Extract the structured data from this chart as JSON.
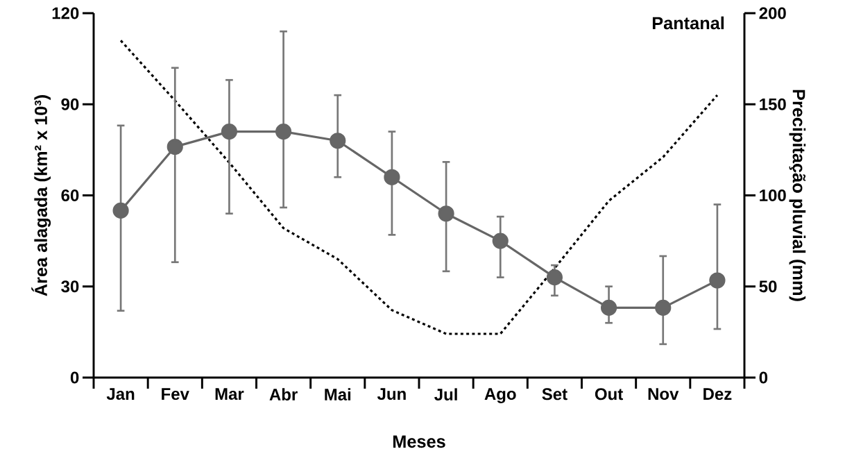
{
  "chart_data": {
    "type": "line",
    "title": "Pantanal",
    "xlabel": "Meses",
    "ylabel": "Área alagada (km² x 10³)",
    "y2label": "Precipitação pluvial (mm)",
    "categories": [
      "Jan",
      "Fev",
      "Mar",
      "Abr",
      "Mai",
      "Jun",
      "Jul",
      "Ago",
      "Set",
      "Out",
      "Nov",
      "Dez"
    ],
    "series": [
      {
        "color": "#666666",
        "marker": "circle",
        "line_style": "solid",
        "values": [
          55,
          76,
          81,
          81,
          78,
          66,
          54,
          45,
          33,
          23,
          23,
          32
        ],
        "errors": [
          [
            22,
            83
          ],
          [
            38,
            102
          ],
          [
            54,
            98
          ],
          [
            56,
            114
          ],
          [
            66,
            93
          ],
          [
            47,
            81
          ],
          [
            35,
            71
          ],
          [
            33,
            53
          ],
          [
            27,
            37
          ],
          [
            18,
            30
          ],
          [
            11,
            40
          ],
          [
            16,
            57
          ]
        ]
      },
      {
        "type": "line",
        "axis": "y2",
        "color": "#000000",
        "marker": "none",
        "line_style": "dotted",
        "values": [
          185,
          152,
          118,
          82,
          65,
          37,
          24,
          24,
          60,
          97,
          121,
          155
        ]
      }
    ],
    "ylim": [
      0,
      120
    ],
    "yticks": [
      0,
      30,
      60,
      90,
      120
    ],
    "y2lim": [
      0,
      200
    ],
    "y2ticks": [
      0,
      50,
      100,
      150,
      200
    ],
    "grid": false
  }
}
